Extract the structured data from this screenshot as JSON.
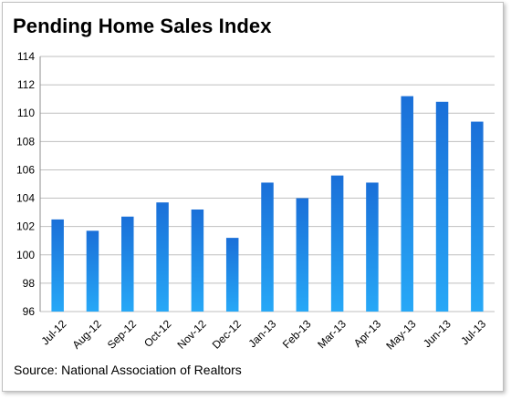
{
  "chart_data": {
    "type": "bar",
    "title": "Pending Home Sales Index",
    "source": "Source: National Association of Realtors",
    "xlabel": "",
    "ylabel": "",
    "categories": [
      "Jul-12",
      "Aug-12",
      "Sep-12",
      "Oct-12",
      "Nov-12",
      "Dec-12",
      "Jan-13",
      "Feb-13",
      "Mar-13",
      "Apr-13",
      "May-13",
      "Jun-13",
      "Jul-13"
    ],
    "values": [
      102.5,
      101.7,
      102.7,
      103.7,
      103.2,
      101.2,
      105.1,
      104.0,
      105.6,
      105.1,
      111.2,
      110.8,
      109.4
    ],
    "ylim": [
      96,
      114
    ],
    "yticks": [
      "96",
      "98",
      "100",
      "102",
      "104",
      "106",
      "108",
      "110",
      "112",
      "114"
    ],
    "grid": "horizontal",
    "legend": "none",
    "colors": {
      "bar_top": "#1a6fd8",
      "bar_bottom": "#27a8f7",
      "grid": "#bfbfbf"
    }
  }
}
